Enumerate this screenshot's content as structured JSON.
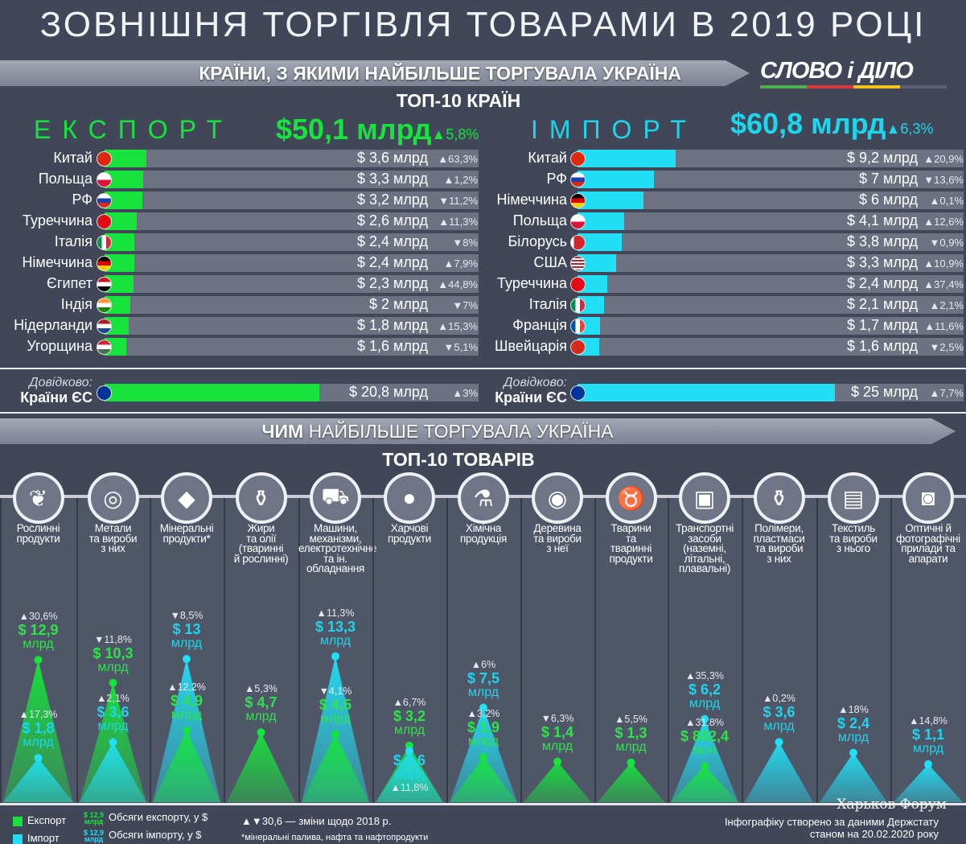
{
  "title": "ЗОВНІШНЯ ТОРГІВЛЯ ТОВАРАМИ В 2019 РОЦІ",
  "logo": {
    "text": "СЛОВО і ДІЛО",
    "stripe_colors": [
      "#4caf50",
      "#d63a3a",
      "#f0c419",
      "#5b6275"
    ]
  },
  "countries_banner": "КРАЇНИ, З ЯКИМИ НАЙБІЛЬШЕ ТОРГУВАЛА УКРАЇНА",
  "countries_subtitle": "ТОП-10 КРАЇН",
  "colors": {
    "export": "#17e33d",
    "import": "#22dff5",
    "background": "#414758"
  },
  "export": {
    "label": "ЕКСПОРТ",
    "total": "$50,1 млрд",
    "total_change": "▲5,8%",
    "countries": [
      {
        "name": "Китай",
        "flag": "cn",
        "value": 3.6,
        "value_text": "$ 3,6 млрд",
        "change": "▲63,3%"
      },
      {
        "name": "Польща",
        "flag": "pl",
        "value": 3.3,
        "value_text": "$ 3,3 млрд",
        "change": "▲1,2%"
      },
      {
        "name": "РФ",
        "flag": "ru",
        "value": 3.2,
        "value_text": "$ 3,2 млрд",
        "change": "▼11,2%"
      },
      {
        "name": "Туреччина",
        "flag": "tr",
        "value": 2.6,
        "value_text": "$ 2,6 млрд",
        "change": "▲11,3%"
      },
      {
        "name": "Італія",
        "flag": "it",
        "value": 2.4,
        "value_text": "$ 2,4 млрд",
        "change": "▼8%"
      },
      {
        "name": "Німеччина",
        "flag": "de",
        "value": 2.4,
        "value_text": "$ 2,4 млрд",
        "change": "▲7,9%"
      },
      {
        "name": "Єгипет",
        "flag": "eg",
        "value": 2.3,
        "value_text": "$ 2,3 млрд",
        "change": "▲44,8%"
      },
      {
        "name": "Індія",
        "flag": "in",
        "value": 2.0,
        "value_text": "$ 2 млрд",
        "change": "▼7%"
      },
      {
        "name": "Нідерланди",
        "flag": "nl",
        "value": 1.8,
        "value_text": "$ 1,8 млрд",
        "change": "▲15,3%"
      },
      {
        "name": "Угорщина",
        "flag": "hu",
        "value": 1.6,
        "value_text": "$ 1,6 млрд",
        "change": "▼5,1%"
      }
    ],
    "eu": {
      "note": "Довідково:",
      "name": "Країни ЄС",
      "flag": "eu",
      "value": 20.8,
      "value_text": "$ 20,8 млрд",
      "change": "▲3%"
    }
  },
  "import": {
    "label": "ІМПОРТ",
    "total": "$60,8 млрд",
    "total_change": "▲6,3%",
    "countries": [
      {
        "name": "Китай",
        "flag": "cn",
        "value": 9.2,
        "value_text": "$ 9,2 млрд",
        "change": "▲20,9%"
      },
      {
        "name": "РФ",
        "flag": "ru",
        "value": 7.0,
        "value_text": "$ 7 млрд",
        "change": "▼13,6%"
      },
      {
        "name": "Німеччина",
        "flag": "de",
        "value": 6.0,
        "value_text": "$ 6 млрд",
        "change": "▲0,1%"
      },
      {
        "name": "Польща",
        "flag": "pl",
        "value": 4.1,
        "value_text": "$ 4,1 млрд",
        "change": "▲12,6%"
      },
      {
        "name": "Білорусь",
        "flag": "by",
        "value": 3.8,
        "value_text": "$ 3,8 млрд",
        "change": "▼0,9%"
      },
      {
        "name": "США",
        "flag": "us",
        "value": 3.3,
        "value_text": "$ 3,3 млрд",
        "change": "▲10,9%"
      },
      {
        "name": "Туреччина",
        "flag": "tr",
        "value": 2.4,
        "value_text": "$ 2,4 млрд",
        "change": "▲37,4%"
      },
      {
        "name": "Італія",
        "flag": "it",
        "value": 2.1,
        "value_text": "$ 2,1 млрд",
        "change": "▲2,1%"
      },
      {
        "name": "Франція",
        "flag": "fr",
        "value": 1.7,
        "value_text": "$ 1,7 млрд",
        "change": "▲11,6%"
      },
      {
        "name": "Швейцарія",
        "flag": "ch",
        "value": 1.6,
        "value_text": "$ 1,6 млрд",
        "change": "▼2,5%"
      }
    ],
    "eu": {
      "note": "Довідково:",
      "name": "Країни ЄС",
      "flag": "eu",
      "value": 25,
      "value_text": "$ 25 млрд",
      "change": "▲7,7%"
    }
  },
  "goods_banner": {
    "bold": "ЧИМ",
    "rest": " НАЙБІЛЬШЕ ТОРГУВАЛА УКРАЇНА"
  },
  "goods_subtitle": "ТОП-10 ТОВАРІВ",
  "chart_data": {
    "type": "area",
    "categories": [
      "Рослинні продукти",
      "Метали та вироби з них",
      "Мінеральні продукти*",
      "Жири та олії (тваринні й рослинні)",
      "Машини, механізми, електротехнічне та ін. обладнання",
      "Харчові продукти",
      "Хімічна продукція",
      "Деревина та вироби з неї",
      "Тварини та тваринні продукти",
      "Транспортні засоби (наземні, літальні, плавальні)",
      "Полімери, пластмаси та вироби з них",
      "Текстиль та вироби з нього",
      "Оптичні й фотографічні прилади та апарати"
    ],
    "unit": "$ млрд",
    "series": [
      {
        "name": "Експорт",
        "values": [
          12.9,
          10.3,
          4.9,
          4.7,
          4.5,
          3.2,
          1.9,
          1.4,
          1.3,
          0.8824,
          null,
          null,
          null
        ]
      },
      {
        "name": "Імпорт",
        "values": [
          1.8,
          3.6,
          13.0,
          null,
          13.3,
          2.6,
          7.5,
          null,
          null,
          6.2,
          3.6,
          2.4,
          1.1
        ]
      }
    ]
  },
  "products": [
    {
      "name": "Рослинні\nпродукти",
      "icon": "leaf-icon",
      "glyph": "❦",
      "export": {
        "v": "$ 12,9",
        "u": "млрд",
        "c": "▲30,6%"
      },
      "import": {
        "v": "$ 1,8",
        "u": "млрд",
        "c": "▲17,3%"
      }
    },
    {
      "name": "Метали\nта вироби\nз них",
      "icon": "metal-roll-icon",
      "glyph": "◎",
      "export": {
        "v": "$ 10,3",
        "u": "млрд",
        "c": "▼11,8%"
      },
      "import": {
        "v": "$ 3,6",
        "u": "млрд",
        "c": "▲2,1%"
      }
    },
    {
      "name": "Мінеральні\nпродукти*",
      "icon": "diamond-icon",
      "glyph": "◆",
      "export": {
        "v": "$ 4,9",
        "u": "млрд",
        "c": "▲12,2%"
      },
      "import": {
        "v": "$ 13",
        "u": "млрд",
        "c": "▼8,5%"
      }
    },
    {
      "name": "Жири\nта олії\n(тваринні\nй рослинні)",
      "icon": "oil-jug-icon",
      "glyph": "⚱",
      "export": {
        "v": "$ 4,7",
        "u": "млрд",
        "c": "▲5,3%"
      },
      "import": null
    },
    {
      "name": "Машини,\nмеханізми,\nелектротехнічне\nта ін.\nобладнання",
      "icon": "crane-truck-icon",
      "glyph": "⛟",
      "export": {
        "v": "$ 4,5",
        "u": "млрд",
        "c": "▼4,1%"
      },
      "import": {
        "v": "$ 13,3",
        "u": "млрд",
        "c": "▲11,3%"
      }
    },
    {
      "name": "Харчові\nпродукти",
      "icon": "vegetables-icon",
      "glyph": "●",
      "export": {
        "v": "$ 3,2",
        "u": "млрд",
        "c": "▲6,7%"
      },
      "import": {
        "v": "$ 2,6",
        "u": "млрд",
        "c": "▲11,8%"
      }
    },
    {
      "name": "Хімічна\nпродукція",
      "icon": "flask-icon",
      "glyph": "⚗",
      "export": {
        "v": "$ 1,9",
        "u": "млрд",
        "c": "▲3,2%"
      },
      "import": {
        "v": "$ 7,5",
        "u": "млрд",
        "c": "▲6%"
      }
    },
    {
      "name": "Деревина\nта вироби\nз неї",
      "icon": "log-icon",
      "glyph": "◉",
      "export": {
        "v": "$ 1,4",
        "u": "млрд",
        "c": "▼6,3%"
      },
      "import": null
    },
    {
      "name": "Тварини\nта\nтваринні\nпродукти",
      "icon": "cow-icon",
      "glyph": "♉",
      "export": {
        "v": "$ 1,3",
        "u": "млрд",
        "c": "▲5,5%"
      },
      "import": null
    },
    {
      "name": "Транспортні\nзасоби\n(наземні,\nлітальні,\nплавальні)",
      "icon": "bus-icon",
      "glyph": "▣",
      "export": {
        "v": "$ 882,4",
        "u": "млн",
        "c": "▲31,8%"
      },
      "import": {
        "v": "$ 6,2",
        "u": "млрд",
        "c": "▲35,3%"
      }
    },
    {
      "name": "Полімери,\nпластмаси\nта вироби\nз них",
      "icon": "bottles-icon",
      "glyph": "⚱",
      "export": null,
      "import": {
        "v": "$ 3,6",
        "u": "млрд",
        "c": "▲0,2%"
      }
    },
    {
      "name": "Текстиль\nта вироби\nз нього",
      "icon": "fabric-icon",
      "glyph": "▤",
      "export": null,
      "import": {
        "v": "$ 2,4",
        "u": "млрд",
        "c": "▲18%"
      }
    },
    {
      "name": "Оптичні й\nфотографічні\nприлади та\nапарати",
      "icon": "camera-icon",
      "glyph": "◙",
      "export": null,
      "import": {
        "v": "$ 1,1",
        "u": "млрд",
        "c": "▲14,8%"
      }
    }
  ],
  "legend": {
    "export_label": "Експорт",
    "import_label": "Імпорт",
    "sample_value": "$ 12,9",
    "sample_unit": "млрд",
    "export_volume": "Обсяги експорту, у $",
    "import_volume": "Обсяги імпорту, у $",
    "change_note": "▲▼30,6 — зміни щодо 2018 р.",
    "footnote": "*мінеральні палива, нафта та нафтопродукти",
    "source_line1": "Інфографіку створено за даними Держстату",
    "source_line2": "станом на 20.02.2020 року"
  },
  "watermark": "Харьков Форум"
}
